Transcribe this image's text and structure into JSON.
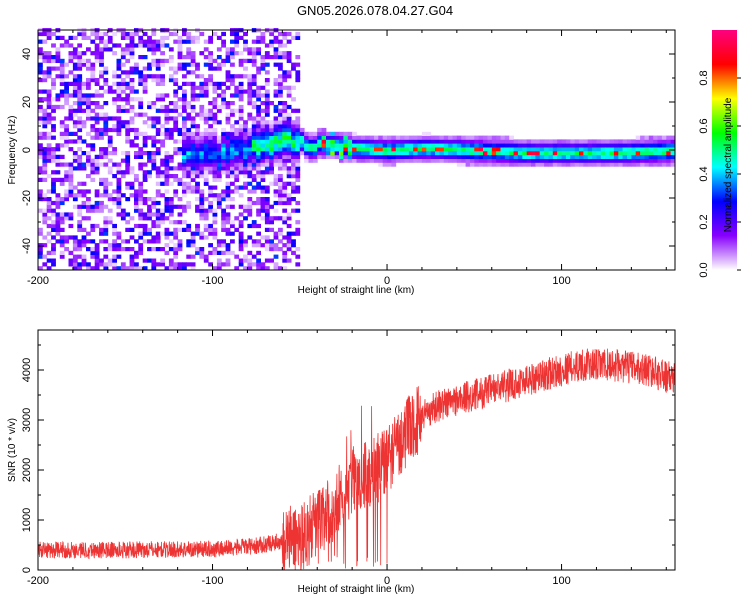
{
  "title": "GN05.2026.078.04.27.G04",
  "chart_data": [
    {
      "type": "heatmap",
      "xlabel": "Height of straight line (km)",
      "ylabel": "Frequency (Hz)",
      "xlim": [
        -200,
        165
      ],
      "ylim": [
        -50,
        50
      ],
      "xticks": [
        -200,
        -100,
        0,
        100
      ],
      "yticks": [
        -40,
        -20,
        0,
        20,
        40
      ],
      "colorbar": {
        "label": "Normalized spectral amplitude",
        "range": [
          0,
          1
        ],
        "ticks": [
          0.0,
          0.2,
          0.4,
          0.6,
          0.8
        ],
        "colors": [
          "#ffffff",
          "#8800ff",
          "#0000ff",
          "#00ffff",
          "#00ff00",
          "#ffff00",
          "#ff0000",
          "#ff0080"
        ]
      },
      "ridge": {
        "description_x": [
          -150,
          -100,
          -60,
          -40,
          -20,
          0,
          20,
          50,
          80,
          100,
          130,
          165
        ],
        "center_frequency": [
          -3,
          -2,
          3,
          2,
          0,
          -1,
          0,
          -1,
          -2,
          -2,
          -2,
          -1
        ]
      },
      "noise_region_xlim": [
        -200,
        -50
      ]
    },
    {
      "type": "line",
      "xlabel": "Height of straight line (km)",
      "ylabel": "SNR (10 * v/v)",
      "xlim": [
        -200,
        165
      ],
      "ylim": [
        0,
        4800
      ],
      "xticks": [
        -200,
        -100,
        0,
        100
      ],
      "yticks": [
        0,
        1000,
        2000,
        3000,
        4000
      ],
      "series": [
        {
          "color": "#ee3333",
          "trend_x": [
            -200,
            -150,
            -100,
            -75,
            -50,
            -40,
            -30,
            -20,
            -10,
            0,
            10,
            20,
            30,
            50,
            70,
            90,
            110,
            130,
            150,
            165
          ],
          "trend_y": [
            400,
            400,
            420,
            480,
            650,
            900,
            1300,
            1800,
            1900,
            2200,
            2700,
            3100,
            3300,
            3500,
            3700,
            3900,
            4100,
            4100,
            4000,
            3800
          ]
        }
      ]
    }
  ]
}
